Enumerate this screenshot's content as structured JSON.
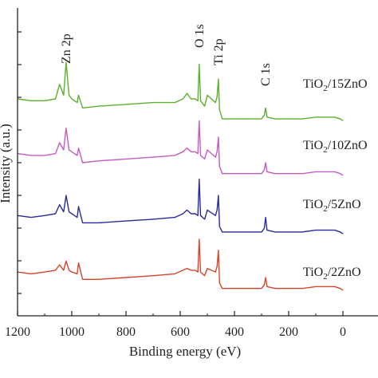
{
  "chart_data": {
    "type": "line",
    "title": "",
    "xlabel": "Binding energy (eV)",
    "ylabel": "Intensity (a.u.)",
    "xlim": [
      1200,
      0
    ],
    "x_reversed": true,
    "xticks": [
      1200,
      1000,
      800,
      600,
      400,
      200,
      0
    ],
    "grid": false,
    "legend": "labels at right of each curve",
    "peak_labels": [
      {
        "text": "Zn 2p",
        "x": 1021
      },
      {
        "text": "O 1s",
        "x": 530
      },
      {
        "text": "Ti 2p",
        "x": 459
      },
      {
        "text": "C 1s",
        "x": 285
      }
    ],
    "series": [
      {
        "name": "TiO2/15ZnO",
        "label_main": "TiO",
        "label_sub": "2",
        "label_rest": "/15ZnO",
        "color": "#5db02e",
        "x": [
          1200,
          1150,
          1100,
          1060,
          1045,
          1030,
          1021,
          1010,
          1000,
          980,
          975,
          960,
          900,
          800,
          700,
          620,
          590,
          575,
          560,
          545,
          535,
          530,
          525,
          510,
          500,
          470,
          464,
          459,
          455,
          445,
          400,
          350,
          300,
          290,
          285,
          280,
          250,
          150,
          100,
          60,
          30,
          10,
          0
        ],
        "values": [
          5.6,
          5.55,
          5.55,
          5.6,
          6.0,
          5.7,
          6.6,
          5.7,
          5.6,
          5.5,
          5.7,
          5.35,
          5.4,
          5.45,
          5.5,
          5.5,
          5.6,
          5.75,
          5.6,
          5.6,
          5.55,
          6.55,
          5.55,
          5.4,
          5.7,
          5.5,
          5.65,
          6.15,
          5.3,
          5.05,
          5.05,
          5.05,
          5.05,
          5.15,
          5.35,
          5.1,
          5.05,
          5.05,
          5.1,
          5.1,
          5.1,
          5.05,
          5.0
        ]
      },
      {
        "name": "TiO2/10ZnO",
        "label_main": "TiO",
        "label_sub": "2",
        "label_rest": "/10ZnO",
        "color": "#c55cbf",
        "x": [
          1200,
          1150,
          1100,
          1060,
          1045,
          1030,
          1021,
          1010,
          1000,
          980,
          975,
          960,
          900,
          800,
          700,
          620,
          590,
          575,
          560,
          545,
          535,
          530,
          525,
          510,
          500,
          470,
          464,
          459,
          455,
          445,
          400,
          350,
          300,
          290,
          285,
          280,
          250,
          150,
          100,
          60,
          30,
          10,
          0
        ],
        "values": [
          4.1,
          4.05,
          4.05,
          4.1,
          4.4,
          4.2,
          4.8,
          4.2,
          4.15,
          4.05,
          4.25,
          3.85,
          3.9,
          3.95,
          4.0,
          4.05,
          4.15,
          4.25,
          4.15,
          4.15,
          4.1,
          5.0,
          4.05,
          3.95,
          4.2,
          4.0,
          4.15,
          4.55,
          3.75,
          3.55,
          3.55,
          3.55,
          3.55,
          3.65,
          3.85,
          3.6,
          3.55,
          3.55,
          3.6,
          3.6,
          3.6,
          3.55,
          3.5
        ]
      },
      {
        "name": "TiO2/5ZnO",
        "label_main": "TiO",
        "label_sub": "2",
        "label_rest": "/5ZnO",
        "color": "#2a2a9c",
        "x": [
          1200,
          1150,
          1100,
          1060,
          1045,
          1030,
          1021,
          1010,
          1000,
          980,
          975,
          960,
          900,
          800,
          700,
          620,
          590,
          575,
          560,
          545,
          535,
          530,
          525,
          510,
          500,
          470,
          464,
          459,
          455,
          445,
          400,
          350,
          300,
          290,
          285,
          280,
          250,
          150,
          100,
          60,
          30,
          10,
          0
        ],
        "values": [
          2.4,
          2.35,
          2.4,
          2.45,
          2.7,
          2.5,
          2.95,
          2.5,
          2.45,
          2.35,
          2.65,
          2.2,
          2.2,
          2.25,
          2.3,
          2.35,
          2.45,
          2.55,
          2.45,
          2.45,
          2.4,
          3.4,
          2.4,
          2.3,
          2.55,
          2.4,
          2.55,
          2.95,
          2.1,
          1.95,
          1.95,
          1.95,
          1.95,
          2.05,
          2.35,
          2.0,
          1.95,
          1.95,
          2.0,
          2.0,
          2.0,
          1.95,
          1.9
        ]
      },
      {
        "name": "TiO2/2ZnO",
        "label_main": "TiO",
        "label_sub": "2",
        "label_rest": "/2ZnO",
        "color": "#d6452a",
        "x": [
          1200,
          1150,
          1100,
          1060,
          1045,
          1030,
          1021,
          1010,
          1000,
          980,
          975,
          960,
          900,
          800,
          700,
          620,
          590,
          575,
          560,
          545,
          535,
          530,
          525,
          510,
          500,
          470,
          464,
          459,
          455,
          445,
          400,
          350,
          300,
          290,
          285,
          280,
          250,
          150,
          100,
          60,
          30,
          10,
          0
        ],
        "values": [
          0.85,
          0.8,
          0.85,
          0.9,
          1.05,
          0.9,
          1.15,
          0.9,
          0.85,
          0.8,
          1.1,
          0.65,
          0.65,
          0.7,
          0.75,
          0.8,
          0.9,
          0.95,
          0.9,
          0.9,
          0.85,
          1.75,
          0.85,
          0.75,
          0.95,
          0.85,
          1.0,
          1.45,
          0.55,
          0.4,
          0.4,
          0.4,
          0.4,
          0.5,
          0.7,
          0.45,
          0.4,
          0.4,
          0.45,
          0.45,
          0.45,
          0.4,
          0.35
        ]
      }
    ]
  }
}
